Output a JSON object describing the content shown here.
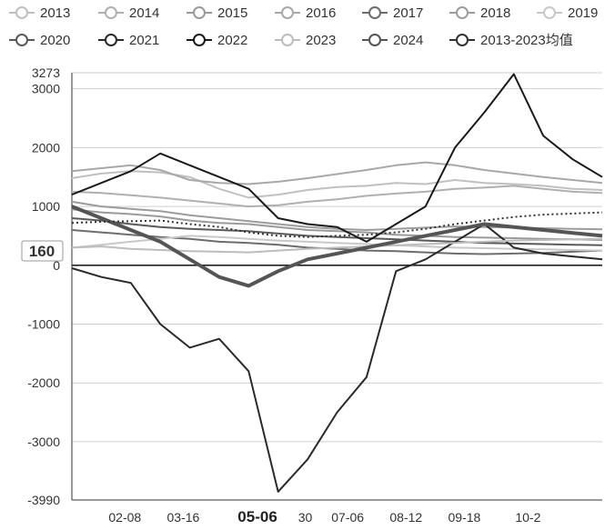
{
  "chart_data": {
    "type": "line",
    "ylim": [
      -3990,
      3273
    ],
    "yticks": [
      "3273",
      "3000",
      "2000",
      "1000",
      "0",
      "-1000",
      "-2000",
      "-3000",
      "-3990"
    ],
    "xticks": [
      "02-08",
      "03-16",
      "05-06",
      "07-06",
      "08-12",
      "09-18",
      "10-2"
    ],
    "xticks_partial": "30",
    "highlighted_x": "05-06",
    "cursor_value": "160",
    "series": [
      {
        "name": "2013",
        "color": "#c0c0c0",
        "style": "solid",
        "values": [
          1480,
          1560,
          1600,
          1580,
          1500,
          1300,
          1150,
          1200,
          1280,
          1330,
          1350,
          1400,
          1380,
          1450,
          1400,
          1380,
          1350,
          1300,
          1280
        ]
      },
      {
        "name": "2014",
        "color": "#b0b0b0",
        "style": "solid",
        "values": [
          1250,
          1230,
          1190,
          1150,
          1100,
          1050,
          1000,
          1020,
          1080,
          1120,
          1180,
          1220,
          1250,
          1300,
          1320,
          1350,
          1300,
          1250,
          1230
        ]
      },
      {
        "name": "2015",
        "color": "#9a9a9a",
        "style": "solid",
        "values": [
          950,
          900,
          870,
          830,
          760,
          720,
          700,
          650,
          600,
          580,
          560,
          520,
          500,
          480,
          470,
          460,
          450,
          440,
          430
        ]
      },
      {
        "name": "2016",
        "color": "#a8a8a8",
        "style": "solid",
        "values": [
          1600,
          1650,
          1700,
          1620,
          1450,
          1400,
          1380,
          1420,
          1480,
          1550,
          1620,
          1700,
          1750,
          1700,
          1620,
          1560,
          1500,
          1450,
          1400
        ]
      },
      {
        "name": "2017",
        "color": "#6d6d6d",
        "style": "solid",
        "values": [
          600,
          560,
          520,
          480,
          450,
          400,
          380,
          350,
          300,
          280,
          250,
          240,
          220,
          200,
          190,
          200,
          210,
          230,
          250
        ]
      },
      {
        "name": "2018",
        "color": "#9c9c9c",
        "style": "solid",
        "values": [
          1080,
          1000,
          960,
          920,
          850,
          800,
          750,
          700,
          650,
          620,
          600,
          620,
          640,
          660,
          650,
          640,
          630,
          620,
          610
        ]
      },
      {
        "name": "2019",
        "color": "#c8c8c8",
        "style": "solid",
        "values": [
          300,
          350,
          400,
          450,
          500,
          480,
          450,
          420,
          400,
          380,
          360,
          340,
          320,
          300,
          290,
          280,
          270,
          260,
          250
        ]
      },
      {
        "name": "2020",
        "color": "#5a5a5a",
        "style": "solid",
        "values": [
          800,
          760,
          700,
          650,
          620,
          600,
          580,
          540,
          500,
          480,
          460,
          440,
          420,
          400,
          380,
          370,
          360,
          350,
          340
        ]
      },
      {
        "name": "2021",
        "color": "#2a2a2a",
        "style": "solid",
        "values": [
          -50,
          -200,
          -300,
          -1000,
          -1400,
          -1250,
          -1800,
          -3850,
          -3300,
          -2500,
          -1900,
          -100,
          100,
          400,
          700,
          300,
          200,
          150,
          100
        ]
      },
      {
        "name": "2022",
        "color": "#1a1a1a",
        "style": "solid",
        "values": [
          1200,
          1400,
          1600,
          1900,
          1700,
          1500,
          1300,
          800,
          700,
          650,
          400,
          700,
          1000,
          2000,
          2600,
          3250,
          2200,
          1800,
          1500
        ]
      },
      {
        "name": "2023",
        "color": "#bdbdbd",
        "style": "solid",
        "values": [
          300,
          320,
          280,
          260,
          240,
          230,
          220,
          250,
          280,
          300,
          320,
          340,
          360,
          380,
          400,
          420,
          430,
          440,
          450
        ]
      },
      {
        "name": "2024",
        "color": "#555555",
        "style": "bold",
        "values": [
          1000,
          800,
          600,
          400,
          100,
          -200,
          -350,
          -100,
          100,
          200,
          300,
          400,
          500,
          600,
          700,
          650,
          600,
          550,
          500
        ]
      },
      {
        "name": "2013-2023均值",
        "color": "#333333",
        "style": "dotted",
        "values": [
          720,
          740,
          750,
          760,
          700,
          650,
          560,
          500,
          480,
          500,
          520,
          560,
          620,
          700,
          760,
          820,
          860,
          880,
          900
        ]
      }
    ]
  }
}
